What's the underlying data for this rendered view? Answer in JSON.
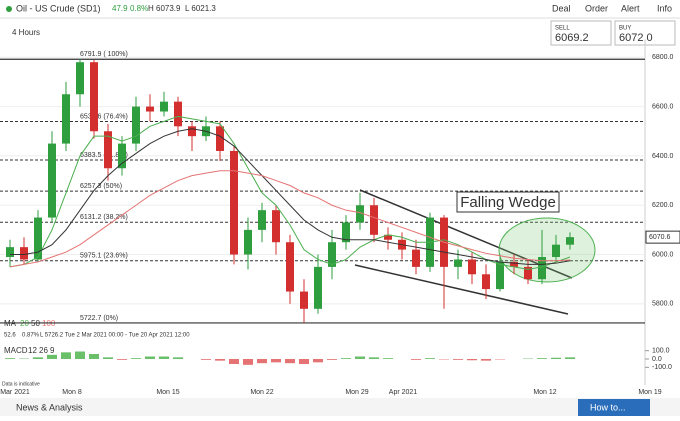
{
  "header": {
    "title": "Oil - US Crude (SD1)",
    "change": "47.9",
    "change_pct": "0.8%",
    "high": "H 6073.9",
    "low": "L 6021.3",
    "nav": [
      "Deal",
      "Order",
      "Alert",
      "Info"
    ],
    "sell_label": "SELL",
    "sell": "6069.2",
    "buy_label": "BUY",
    "buy": "6072.0",
    "interval": "4 Hours"
  },
  "legend": {
    "ma": "MA",
    "periods": [
      "20",
      "50",
      "100"
    ],
    "val1": "52.6",
    "val2": "0.87%",
    "range": "L 5726.2  Tue 2 Mar 2021 00:00 - Tue 20 Apr 2021 12:00",
    "macd": "MACD",
    "macd_params": [
      "12",
      "26",
      "9"
    ],
    "note": "Data is indicative"
  },
  "footer": {
    "news": "News & Analysis",
    "howto": "How to..."
  },
  "annotation": "Falling Wedge",
  "chart_data": [
    {
      "type": "candlestick",
      "price_label": "6070.6",
      "x_labels": [
        "Mar 2021",
        "Mon 8",
        "Mon 15",
        "Mon 22",
        "Mon 29",
        "Apr 2021",
        "Mon 12",
        "Mon 19"
      ],
      "open": [
        5990,
        6030,
        5980,
        6150,
        6450,
        6650,
        6780,
        6500,
        6350,
        6450,
        6600,
        6580,
        6620,
        6520,
        6480,
        6520,
        6420,
        6000,
        6100,
        6180,
        6050,
        5850,
        5780,
        5950,
        6050,
        6130,
        6200,
        6080,
        6060,
        6020,
        5950,
        6150,
        5950,
        5980,
        5920,
        5860,
        5970,
        5950,
        5900,
        5990,
        6040
      ],
      "high": [
        6060,
        6070,
        6180,
        6500,
        6700,
        6792,
        6790,
        6530,
        6480,
        6640,
        6650,
        6660,
        6640,
        6540,
        6560,
        6540,
        6440,
        6150,
        6210,
        6200,
        6080,
        5900,
        6000,
        6100,
        6160,
        6250,
        6230,
        6110,
        6090,
        6060,
        6170,
        6160,
        6020,
        6010,
        5960,
        6000,
        6000,
        5980,
        6100,
        6080,
        6090
      ],
      "low": [
        5950,
        5960,
        5970,
        6130,
        6420,
        6600,
        6470,
        6300,
        6320,
        6420,
        6540,
        6560,
        6480,
        6420,
        6460,
        6380,
        5960,
        5940,
        6050,
        6000,
        5800,
        5722.7,
        5760,
        5900,
        6020,
        6100,
        6050,
        6020,
        5980,
        5920,
        5930,
        5780,
        5900,
        5880,
        5820,
        5850,
        5920,
        5880,
        5880,
        5970,
        6020
      ],
      "close": [
        6030,
        5980,
        6150,
        6450,
        6650,
        6780,
        6500,
        6350,
        6450,
        6600,
        6580,
        6620,
        6520,
        6480,
        6520,
        6420,
        6000,
        6100,
        6180,
        6050,
        5850,
        5780,
        5950,
        6050,
        6130,
        6200,
        6080,
        6060,
        6020,
        5950,
        6150,
        5950,
        5980,
        5920,
        5860,
        5970,
        5950,
        5900,
        5990,
        6040,
        6070.6
      ],
      "series": [
        {
          "name": "20",
          "color": "#4caf50",
          "values": [
            5950,
            5960,
            5990,
            6100,
            6250,
            6400,
            6480,
            6480,
            6460,
            6480,
            6520,
            6540,
            6560,
            6550,
            6540,
            6530,
            6450,
            6350,
            6250,
            6200,
            6120,
            6020,
            5980,
            5960,
            5980,
            6030,
            6060,
            6080,
            6070,
            6050,
            6050,
            6060,
            6040,
            6010,
            5980,
            5960,
            5950,
            5940,
            5950,
            5970,
            5990
          ]
        },
        {
          "name": "50",
          "color": "#333333",
          "values": [
            6000,
            6000,
            6010,
            6040,
            6100,
            6180,
            6260,
            6320,
            6370,
            6410,
            6450,
            6480,
            6500,
            6510,
            6500,
            6480,
            6440,
            6380,
            6320,
            6260,
            6200,
            6140,
            6100,
            6070,
            6060,
            6060,
            6060,
            6050,
            6040,
            6030,
            6020,
            6010,
            6000,
            5990,
            5980,
            5970,
            5965,
            5960,
            5960,
            5965,
            5975
          ]
        },
        {
          "name": "100",
          "color": "#e57373",
          "values": [
            5950,
            5960,
            5970,
            5990,
            6010,
            6040,
            6080,
            6120,
            6160,
            6200,
            6240,
            6270,
            6300,
            6320,
            6330,
            6340,
            6340,
            6330,
            6320,
            6300,
            6280,
            6250,
            6230,
            6200,
            6180,
            6170,
            6150,
            6130,
            6110,
            6090,
            6070,
            6050,
            6035,
            6020,
            6005,
            5995,
            5985,
            5980,
            5975,
            5975,
            5978
          ]
        }
      ],
      "levels": [
        {
          "value": 6791.9,
          "label": "6791.9 ( 100%)"
        },
        {
          "value": 6539.6,
          "label": "6539.6 (76.4%)"
        },
        {
          "value": 6383.5,
          "label": "6383.5 (61.8%)"
        },
        {
          "value": 6257.3,
          "label": "6257.3 (50%)"
        },
        {
          "value": 6131.2,
          "label": "6131.2 (38.2%)"
        },
        {
          "value": 5975.1,
          "label": "5975.1 (23.6%)"
        },
        {
          "value": 5722.7,
          "label": "5722.7 (0%)"
        }
      ],
      "ylim": [
        5690,
        6870
      ],
      "yticks": [
        {
          "value": 6800,
          "label": "6800.0"
        },
        {
          "value": 6600,
          "label": "6600.0"
        },
        {
          "value": 6400,
          "label": "6400.0"
        },
        {
          "value": 6200,
          "label": "6200.0"
        },
        {
          "value": 6000,
          "label": "6000.0"
        },
        {
          "value": 5800,
          "label": "5800.0"
        }
      ]
    },
    {
      "type": "bar",
      "title": "MACD",
      "values": [
        10,
        5,
        20,
        50,
        80,
        90,
        60,
        20,
        -10,
        10,
        30,
        30,
        20,
        0,
        -10,
        -20,
        -60,
        -70,
        -50,
        -40,
        -50,
        -60,
        -40,
        -10,
        10,
        30,
        20,
        10,
        0,
        -10,
        10,
        -5,
        -10,
        -15,
        -20,
        -5,
        0,
        5,
        10,
        15,
        20
      ],
      "ylim": [
        -180,
        180
      ],
      "yticks": [
        {
          "value": 100,
          "label": "100.0"
        },
        {
          "value": 0,
          "label": "0.0"
        },
        {
          "value": -100,
          "label": "-100.0"
        }
      ]
    }
  ]
}
